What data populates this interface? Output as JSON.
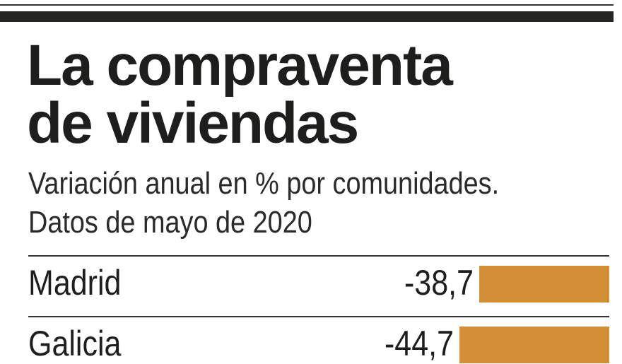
{
  "title_lines": [
    "La compraventa",
    "de viviendas"
  ],
  "subtitle_lines": [
    "Variación anual en % por comunidades.",
    "Datos de mayo de 2020"
  ],
  "colors": {
    "bar": "#d48e35",
    "text": "#1e1e1c"
  },
  "chart_data": {
    "type": "bar",
    "orientation": "horizontal",
    "title": "La compraventa de viviendas",
    "subtitle": "Variación anual en % por comunidades. Datos de mayo de 2020",
    "categories": [
      "Madrid",
      "Galicia"
    ],
    "values": [
      -38.7,
      -44.7
    ],
    "value_labels": [
      "-38,7",
      "-44,7"
    ],
    "xlabel": "",
    "ylabel": ""
  }
}
